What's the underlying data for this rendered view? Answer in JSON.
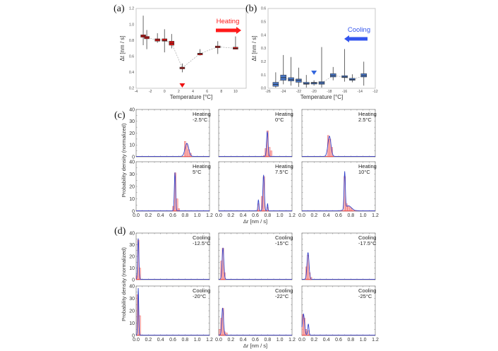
{
  "chart_data": [
    {
      "panel": "(a)",
      "type": "box",
      "xlabel": "Temperature [°C]",
      "ylabel": "Δt [nm / s]",
      "xlim": [
        -4,
        11.5
      ],
      "ylim": [
        0.2,
        1.2
      ],
      "xticks": [
        -4,
        -2,
        0,
        2,
        4,
        6,
        8,
        10
      ],
      "yticks": [
        0.2,
        0.4,
        0.6,
        0.8,
        1.0,
        1.2
      ],
      "annotation": "Heating",
      "annotation_color": "#ff1a1a",
      "box_color": "#e01010",
      "marker_x": 2.5,
      "boxes": [
        {
          "x": -3,
          "median": 0.855,
          "q1": 0.84,
          "q3": 0.87,
          "min": 0.74,
          "max": 1.11
        },
        {
          "x": -2.5,
          "median": 0.835,
          "q1": 0.82,
          "q3": 0.85,
          "min": 0.69,
          "max": 0.93
        },
        {
          "x": -1,
          "median": 0.805,
          "q1": 0.79,
          "q3": 0.82,
          "min": 0.77,
          "max": 0.89
        },
        {
          "x": 0,
          "median": 0.8,
          "q1": 0.79,
          "q3": 0.82,
          "min": 0.65,
          "max": 0.94
        },
        {
          "x": 1,
          "median": 0.765,
          "q1": 0.74,
          "q3": 0.79,
          "min": 0.7,
          "max": 0.88
        },
        {
          "x": 2.5,
          "median": 0.455,
          "q1": 0.445,
          "q3": 0.465,
          "min": 0.4,
          "max": 0.51
        },
        {
          "x": 5,
          "median": 0.635,
          "q1": 0.63,
          "q3": 0.64,
          "min": 0.61,
          "max": 0.69
        },
        {
          "x": 7.5,
          "median": 0.72,
          "q1": 0.71,
          "q3": 0.73,
          "min": 0.63,
          "max": 0.79
        },
        {
          "x": 10,
          "median": 0.7,
          "q1": 0.69,
          "q3": 0.715,
          "min": 0.69,
          "max": 0.85
        }
      ]
    },
    {
      "panel": "(b)",
      "type": "box",
      "xlabel": "Temperature [°C]",
      "ylabel": "Δt [nm / s]",
      "xlim": [
        -26,
        -12
      ],
      "ylim": [
        0.0,
        0.6
      ],
      "xticks": [
        -26,
        -24,
        -22,
        -20,
        -18,
        -16,
        -14,
        -12
      ],
      "yticks": [
        0.0,
        0.1,
        0.2,
        0.3,
        0.4,
        0.5,
        0.6
      ],
      "annotation": "Cooling",
      "annotation_color": "#3355ee",
      "box_color": "#4a78c8",
      "marker_x": -20,
      "boxes": [
        {
          "x": -25,
          "median": 0.03,
          "q1": 0.015,
          "q3": 0.045,
          "min": 0.005,
          "max": 0.12
        },
        {
          "x": -24,
          "median": 0.08,
          "q1": 0.06,
          "q3": 0.1,
          "min": 0.03,
          "max": 0.25
        },
        {
          "x": -23,
          "median": 0.065,
          "q1": 0.055,
          "q3": 0.08,
          "min": 0.02,
          "max": 0.235
        },
        {
          "x": -22,
          "median": 0.06,
          "q1": 0.045,
          "q3": 0.07,
          "min": 0.01,
          "max": 0.155
        },
        {
          "x": -21,
          "median": 0.035,
          "q1": 0.03,
          "q3": 0.045,
          "min": 0.005,
          "max": 0.1
        },
        {
          "x": -20,
          "median": 0.04,
          "q1": 0.035,
          "q3": 0.045,
          "min": 0.02,
          "max": 0.06
        },
        {
          "x": -19,
          "median": 0.04,
          "q1": 0.03,
          "q3": 0.05,
          "min": 0.005,
          "max": 0.31
        },
        {
          "x": -17.5,
          "median": 0.095,
          "q1": 0.085,
          "q3": 0.11,
          "min": 0.06,
          "max": 0.16
        },
        {
          "x": -16,
          "median": 0.085,
          "q1": 0.08,
          "q3": 0.095,
          "min": 0.05,
          "max": 0.295
        },
        {
          "x": -15,
          "median": 0.065,
          "q1": 0.06,
          "q3": 0.075,
          "min": 0.045,
          "max": 0.105
        },
        {
          "x": -13.5,
          "median": 0.095,
          "q1": 0.085,
          "q3": 0.11,
          "min": 0.02,
          "max": 0.2
        }
      ]
    },
    {
      "panel": "(c)",
      "type": "histogram-grid",
      "xlabel": "Δr [nm / s]",
      "ylabel": "Probability density (normalized)",
      "xlim": [
        0,
        1.2
      ],
      "ylim": [
        0,
        40
      ],
      "xticks": [
        "0.0",
        "0.2",
        "0.4",
        "0.6",
        "0.8",
        "1.0",
        "1.2"
      ],
      "yticks": [
        "0",
        "10",
        "20",
        "30",
        "40"
      ],
      "subplots": [
        {
          "label1": "Heating",
          "label2": "-2.5°C",
          "peaks": [
            {
              "mu": 0.83,
              "sd": 0.03,
              "h": 11
            }
          ],
          "bars": [
            [
              0.8,
              13
            ],
            [
              0.83,
              11
            ],
            [
              0.86,
              6
            ],
            [
              0.89,
              3
            ]
          ]
        },
        {
          "label1": "Heating",
          "label2": "0°C",
          "peaks": [
            {
              "mu": 0.795,
              "sd": 0.012,
              "h": 21
            }
          ],
          "bars": [
            [
              0.74,
              1
            ],
            [
              0.77,
              7
            ],
            [
              0.8,
              22
            ],
            [
              0.83,
              8
            ],
            [
              0.86,
              5
            ]
          ]
        },
        {
          "label1": "Heating",
          "label2": "2.5°C",
          "peaks": [
            {
              "mu": 0.45,
              "sd": 0.025,
              "h": 17
            }
          ],
          "bars": [
            [
              0.43,
              18
            ],
            [
              0.46,
              15
            ],
            [
              0.49,
              8
            ]
          ]
        },
        {
          "label1": "Heating",
          "label2": "5°C",
          "peaks": [
            {
              "mu": 0.635,
              "sd": 0.01,
              "h": 31
            }
          ],
          "bars": [
            [
              0.61,
              4
            ],
            [
              0.64,
              31
            ],
            [
              0.67,
              10
            ],
            [
              0.7,
              2
            ]
          ]
        },
        {
          "label1": "Heating",
          "label2": "7.5°C",
          "peaks": [
            {
              "mu": 0.65,
              "sd": 0.008,
              "h": 9
            },
            {
              "mu": 0.735,
              "sd": 0.012,
              "h": 29
            },
            {
              "mu": 0.8,
              "sd": 0.006,
              "h": 6
            }
          ],
          "bars": [
            [
              0.65,
              6
            ],
            [
              0.71,
              12
            ],
            [
              0.74,
              28
            ],
            [
              0.8,
              3
            ]
          ]
        },
        {
          "label1": "Heating",
          "label2": "10°C",
          "peaks": [
            {
              "mu": 0.7,
              "sd": 0.01,
              "h": 30
            },
            {
              "mu": 0.76,
              "sd": 0.05,
              "h": 4
            }
          ],
          "bars": [
            [
              0.7,
              28
            ],
            [
              0.73,
              6
            ],
            [
              0.76,
              4
            ],
            [
              0.79,
              3
            ],
            [
              0.82,
              2
            ]
          ]
        }
      ]
    },
    {
      "panel": "(d)",
      "type": "histogram-grid",
      "xlabel": "Δr [nm / s]",
      "ylabel": "Probability density (normalized)",
      "xlim": [
        0,
        1.2
      ],
      "ylim": [
        0,
        40
      ],
      "xticks": [
        "0.0",
        "0.2",
        "0.4",
        "0.6",
        "0.8",
        "1.0",
        "1.2"
      ],
      "yticks": [
        "0",
        "10",
        "20",
        "30",
        "40"
      ],
      "subplots": [
        {
          "label1": "Cooling",
          "label2": "-12.5°C",
          "peaks": [
            {
              "mu": 0.035,
              "sd": 0.01,
              "h": 35
            }
          ],
          "bars": [
            [
              0.01,
              3
            ],
            [
              0.035,
              34
            ],
            [
              0.06,
              10
            ]
          ]
        },
        {
          "label1": "Cooling",
          "label2": "-15°C",
          "peaks": [
            {
              "mu": 0.07,
              "sd": 0.014,
              "h": 27
            }
          ],
          "bars": [
            [
              0.045,
              16
            ],
            [
              0.07,
              27
            ],
            [
              0.095,
              6
            ]
          ]
        },
        {
          "label1": "Cooling",
          "label2": "-17.5°C",
          "peaks": [
            {
              "mu": 0.1,
              "sd": 0.016,
              "h": 23
            }
          ],
          "bars": [
            [
              0.075,
              11
            ],
            [
              0.1,
              21
            ],
            [
              0.125,
              6
            ],
            [
              0.15,
              2
            ]
          ]
        },
        {
          "label1": "Cooling",
          "label2": "-20°C",
          "peaks": [
            {
              "mu": 0.035,
              "sd": 0.008,
              "h": 38
            }
          ],
          "bars": [
            [
              0.025,
              33
            ],
            [
              0.06,
              16
            ]
          ]
        },
        {
          "label1": "Cooling",
          "label2": "-22°C",
          "peaks": [
            {
              "mu": 0.065,
              "sd": 0.014,
              "h": 22
            }
          ],
          "bars": [
            [
              0.02,
              5
            ],
            [
              0.045,
              14
            ],
            [
              0.07,
              22
            ],
            [
              0.095,
              3
            ],
            [
              0.13,
              2
            ]
          ]
        },
        {
          "label1": "Cooling",
          "label2": "-25°C",
          "peaks": [
            {
              "mu": 0.025,
              "sd": 0.018,
              "h": 17
            },
            {
              "mu": 0.105,
              "sd": 0.01,
              "h": 9
            }
          ],
          "bars": [
            [
              0.015,
              17
            ],
            [
              0.04,
              14
            ],
            [
              0.065,
              5
            ],
            [
              0.11,
              4
            ]
          ]
        }
      ]
    }
  ]
}
